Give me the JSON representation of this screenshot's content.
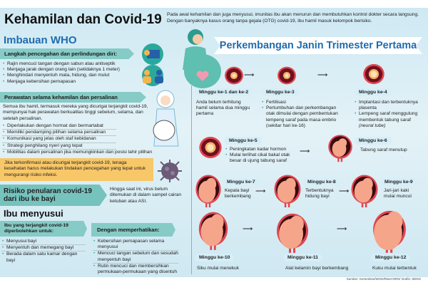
{
  "title": "Kehamilan dan Covid-19",
  "intro": "Pada awal kehamilan dan juga menyusui, imunitas ibu akan menurun dan membutuhkan kontrol dokter secara langsung. Dengan banyaknya kasus orang tanpa gejala (OTG) covid-19, ibu hamil masuk kelompok berisiko.",
  "who": {
    "heading": "Imbauan WHO",
    "prevention": {
      "title": "Langkah pencegahan dan perlindungan diri:",
      "items": [
        "Rajin mencuci tangan dengan sabun atau antiseptik",
        "Menjaga jarak dengan orang lain (setidaknya 1 meter)",
        "Menghindari menyentuh mata, hidung, dan mulut",
        "Menjaga kebersihan pernapasan"
      ]
    },
    "care": {
      "title": "Perawatan selama kehamilan dan persalinan",
      "intro": "Semua ibu hamil, termasuk mereka yang dicurigai terjangkit covid-19, mempunyai hak perawatan berkualitas tinggi sebelum, selama, dan setelah persalinan.",
      "items": [
        "Diperlakukan dengan hormat dan bermartabat",
        "Memiliki pendamping pilihan selama persalinan",
        "Komunikasi yang jelas oleh staf kebidanan",
        "Strategi penghilang nyeri yang tepat",
        "Mobilitas dalam persalinan jika memungkinkan dan posisi lahir pilihan"
      ]
    },
    "warning": "Jika terkonfirmasi atau dicurigai terjangkit covid-19, tenaga kesehatan harus melakukan tindakan pencegahan yang tepat untuk mengurangi risiko infeksi.",
    "risk": {
      "title": "Risiko penularan covid-19 dari ibu ke bayi",
      "text": "Hingga saat ini, virus belum ditemukan di dalam sampel cairan ketuban atau ASI."
    },
    "breastfeeding": {
      "heading": "Ibu menyusui",
      "allowed_title": "Ibu yang terjangkit covid-19 diperbolehkan untuk:",
      "allowed": [
        "Menyusui bayi",
        "Menyentuh dan memegang bayi",
        "Berada dalam satu kamar dengan bayi"
      ],
      "notice_title": "Dengan memperhatikan:",
      "notice": [
        "Kebersihan pernapasan selama menyusui",
        "Mencuci tangan sebelum dan sesudah menyentuh bayi",
        "Rutin mencuci dan membersihkan permukaan-permukaan yang disentuh"
      ]
    }
  },
  "trimester": {
    "title": "Perkembangan Janin Trimester Pertama",
    "weeks": [
      {
        "label": "Minggu ke-1 dan ke-2",
        "text": "Anda belum terhitung hamil selama dua minggu pertama"
      },
      {
        "label": "Minggu ke-3",
        "items": [
          "Fertilisasi",
          "Pertumbuhan dan perkembangan otak dimulai dengan pembentukan lempeng saraf pada masa embrio (sekitar hari ke-16)"
        ]
      },
      {
        "label": "Minggu ke-4",
        "items": [
          "Implantasi dan terbentuknya plasenta",
          "Lempeng saraf menggulung membentuk tabung saraf"
        ],
        "note": "(neural tube)"
      },
      {
        "label": "Minggu ke-5",
        "items": [
          "Peningkatan kadar hormon",
          "Mulai terlihat cikal bakal otak besar di ujung tabung saraf"
        ]
      },
      {
        "label": "Minggu ke-6",
        "text": "Tabung saraf menutup"
      },
      {
        "label": "Minggu ke-7",
        "text": "Kepala bayi berkembang"
      },
      {
        "label": "Minggu ke-8",
        "text": "Terbentuknya hidung bayi"
      },
      {
        "label": "Minggu ke-9",
        "text": "Jari-jari kaki mulai muncul"
      },
      {
        "label": "Minggu ke-10",
        "text": "Siku mulai menekuk"
      },
      {
        "label": "Minggu ke-11",
        "text": "Alat kelamin bayi berkembang"
      },
      {
        "label": "Minggu ke-12",
        "text": "Kuku mulai terbentuk"
      }
    ]
  },
  "source": "Sumber: Kemenkes/WHO/Riset NRO/ Grafis: SENO",
  "colors": {
    "accent_blue": "#1f6cb0",
    "teal": "#86cbc6",
    "orange": "#f8c768",
    "embryo_red": "#8b1a2b"
  }
}
